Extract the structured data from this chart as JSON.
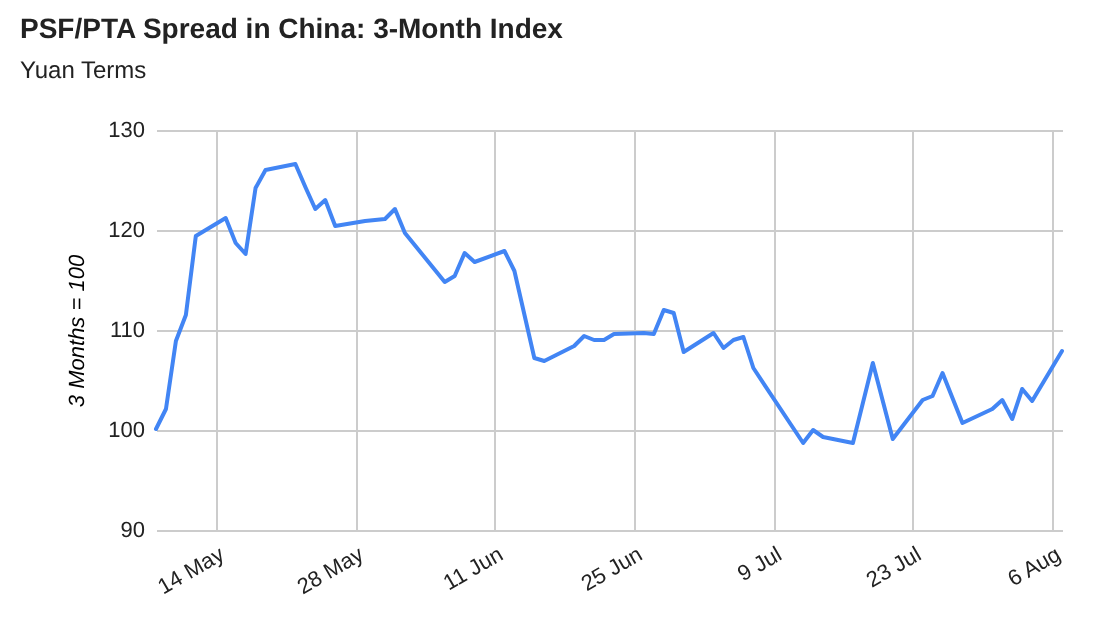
{
  "chart_data": {
    "type": "line",
    "title": "PSF/PTA Spread in China: 3-Month Index",
    "subtitle": "Yuan Terms",
    "ylabel": "3 Months = 100",
    "x": [
      "--05-08",
      "--05-09",
      "--05-10",
      "--05-11",
      "--05-12",
      "--05-15",
      "--05-16",
      "--05-17",
      "--05-18",
      "--05-19",
      "--05-22",
      "--05-23",
      "--05-24",
      "--05-25",
      "--05-26",
      "--05-29",
      "--05-31",
      "--06-01",
      "--06-02",
      "--06-06",
      "--06-07",
      "--06-08",
      "--06-09",
      "--06-12",
      "--06-13",
      "--06-15",
      "--06-16",
      "--06-19",
      "--06-20",
      "--06-21",
      "--06-22",
      "--06-23",
      "--06-26",
      "--06-27",
      "--06-28",
      "--06-29",
      "--06-30",
      "--07-03",
      "--07-04",
      "--07-05",
      "--07-06",
      "--07-07",
      "--07-12",
      "--07-13",
      "--07-14",
      "--07-17",
      "--07-19",
      "--07-21",
      "--07-24",
      "--07-25",
      "--07-26",
      "--07-28",
      "--07-31",
      "--08-01",
      "--08-02",
      "--08-03",
      "--08-04",
      "--08-07"
    ],
    "series": [
      {
        "color": "#4285f4",
        "values": [
          100.1,
          102.1,
          108.9,
          111.5,
          119.4,
          121.2,
          118.7,
          117.6,
          124.2,
          126.0,
          126.6,
          124.3,
          122.1,
          123.0,
          120.4,
          120.9,
          121.1,
          122.1,
          119.7,
          114.8,
          115.4,
          117.7,
          116.8,
          117.9,
          115.9,
          107.2,
          106.9,
          108.4,
          109.4,
          109.0,
          109.0,
          109.6,
          109.7,
          109.6,
          112.0,
          111.7,
          107.8,
          109.7,
          108.2,
          109.0,
          109.3,
          106.2,
          98.7,
          100.0,
          99.3,
          98.7,
          106.7,
          99.1,
          103.0,
          103.4,
          105.7,
          100.7,
          102.1,
          103.0,
          101.1,
          104.1,
          102.9,
          107.9
        ]
      }
    ],
    "xlim": [
      "--05-08",
      "--08-07"
    ],
    "xticks": [
      {
        "value": "--05-14",
        "label": "14 May"
      },
      {
        "value": "--05-28",
        "label": "28 May"
      },
      {
        "value": "--06-11",
        "label": "11 Jun"
      },
      {
        "value": "--06-25",
        "label": "25 Jun"
      },
      {
        "value": "--07-09",
        "label": "9 Jul"
      },
      {
        "value": "--07-23",
        "label": "23 Jul"
      },
      {
        "value": "--08-06",
        "label": "6 Aug"
      }
    ],
    "ylim": [
      90,
      130
    ],
    "yticks": [
      90,
      100,
      110,
      120,
      130
    ],
    "grid": true,
    "marker": "none",
    "line_style": "solid"
  }
}
